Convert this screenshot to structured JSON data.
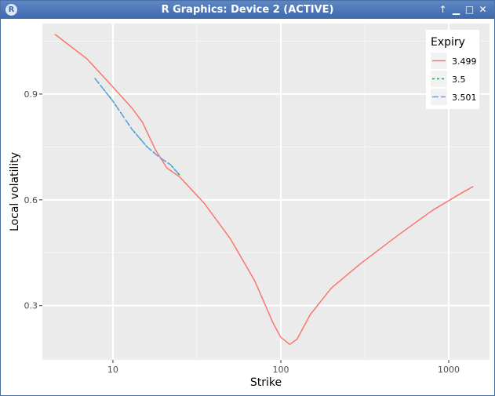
{
  "window": {
    "title": "R Graphics: Device 2 (ACTIVE)",
    "icon": "r-logo-icon",
    "buttons": [
      "pin-icon",
      "minimize-icon",
      "maximize-icon",
      "close-icon"
    ]
  },
  "chart_data": {
    "type": "line",
    "title": "",
    "xlabel": "Strike",
    "ylabel": "Local volatility",
    "x_scale": "log10",
    "xlim": [
      3.8,
      1750
    ],
    "ylim": [
      0.146,
      1.1
    ],
    "x_ticks": [
      10,
      100,
      1000
    ],
    "x_tick_labels": [
      "10",
      "100",
      "1000"
    ],
    "y_ticks": [
      0.3,
      0.6,
      0.9
    ],
    "y_tick_labels": [
      "0.3",
      "0.6",
      "0.9"
    ],
    "grid": true,
    "panel_background": "#ebebeb",
    "legend": {
      "title": "Expiry",
      "position": "top-right"
    },
    "series": [
      {
        "name": "3.499",
        "color": "#f8766d",
        "dash": "solid",
        "points": [
          [
            4.5,
            1.07
          ],
          [
            7,
            1.0
          ],
          [
            10,
            0.92
          ],
          [
            13,
            0.86
          ],
          [
            15,
            0.82
          ],
          [
            18,
            0.74
          ],
          [
            21,
            0.69
          ],
          [
            25,
            0.665
          ],
          [
            35,
            0.59
          ],
          [
            50,
            0.49
          ],
          [
            70,
            0.37
          ],
          [
            90,
            0.25
          ],
          [
            100,
            0.21
          ],
          [
            113,
            0.19
          ],
          [
            125,
            0.205
          ],
          [
            150,
            0.275
          ],
          [
            200,
            0.35
          ],
          [
            300,
            0.42
          ],
          [
            500,
            0.5
          ],
          [
            800,
            0.57
          ],
          [
            1200,
            0.62
          ],
          [
            1400,
            0.638
          ]
        ]
      },
      {
        "name": "3.5",
        "color": "#00ba38",
        "dash": "3,3",
        "points": [
          [
            7.8,
            0.945
          ],
          [
            10,
            0.88
          ],
          [
            13,
            0.8
          ],
          [
            16,
            0.75
          ],
          [
            19,
            0.72
          ],
          [
            22,
            0.7
          ],
          [
            25,
            0.67
          ]
        ]
      },
      {
        "name": "3.501",
        "color": "#619cff",
        "dash": "8,3",
        "points": [
          [
            7.8,
            0.945
          ],
          [
            10,
            0.88
          ],
          [
            13,
            0.8
          ],
          [
            16,
            0.75
          ],
          [
            19,
            0.72
          ],
          [
            22,
            0.7
          ],
          [
            25,
            0.67
          ]
        ]
      }
    ]
  }
}
